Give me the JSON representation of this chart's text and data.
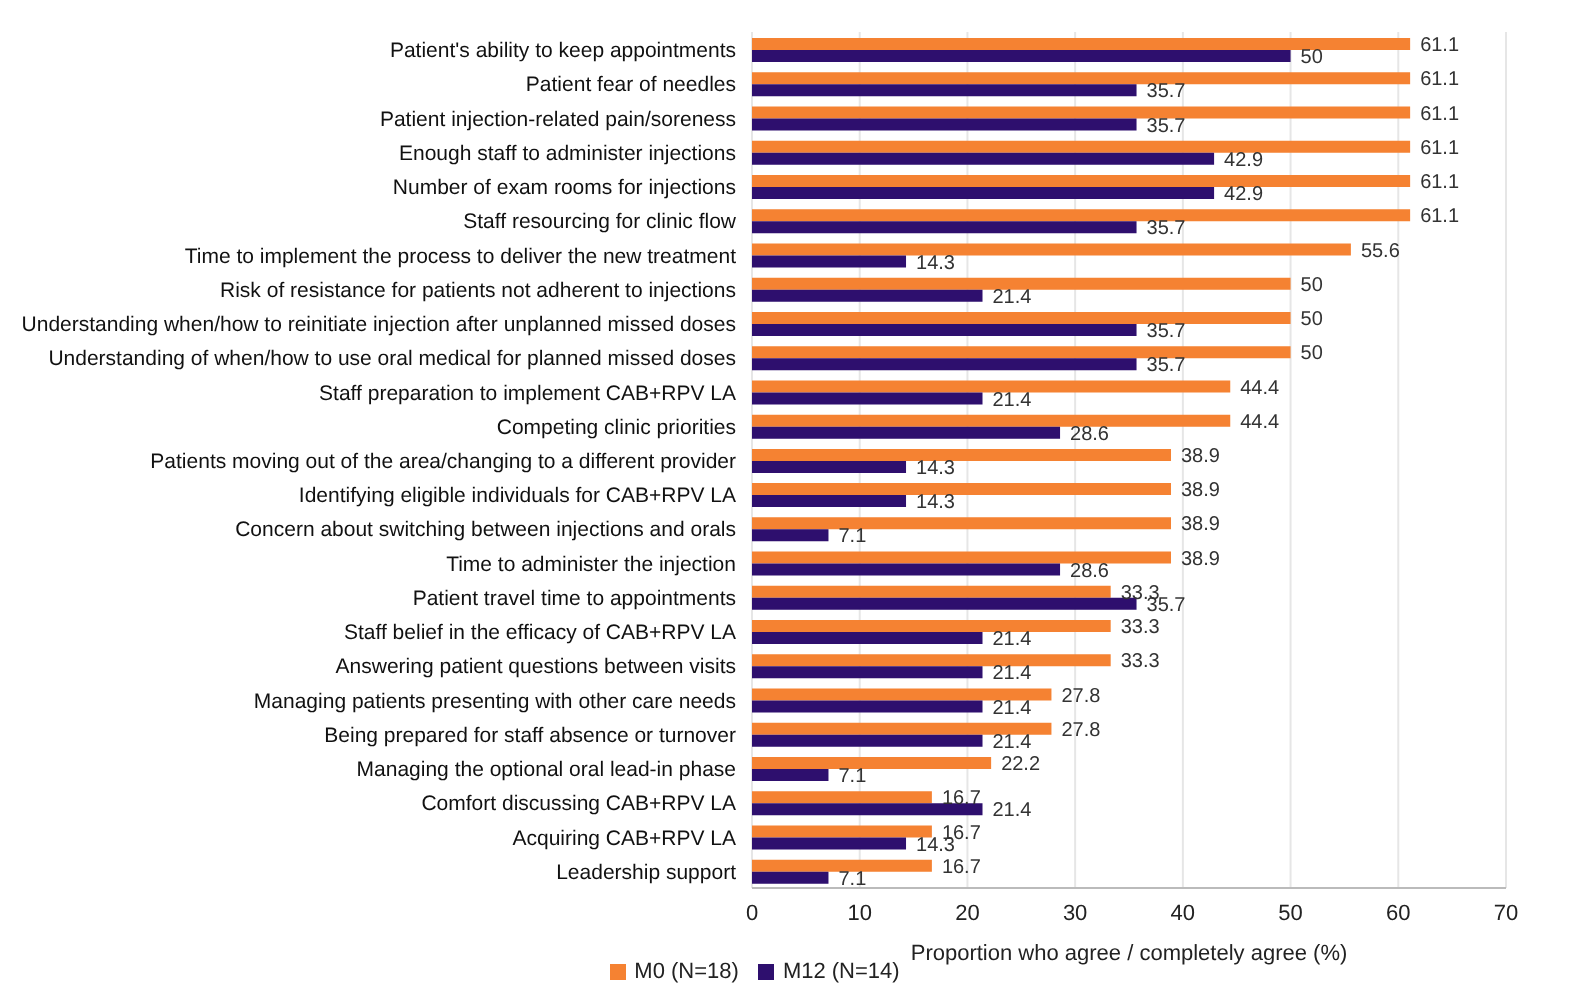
{
  "chart_data": {
    "type": "bar",
    "orientation": "horizontal",
    "xlabel": "Proportion who agree / completely agree (%)",
    "categories": [
      "Patient's ability to keep appointments",
      "Patient fear of needles",
      "Patient injection-related pain/soreness",
      "Enough staff to administer injections",
      "Number of exam rooms for injections",
      "Staff resourcing for clinic flow",
      "Time to implement the process to deliver the new treatment",
      "Risk of resistance for patients not adherent to injections",
      "Understanding when/how to reinitiate injection after unplanned missed doses",
      "Understanding of when/how to use oral medical for planned missed doses",
      "Staff preparation to implement CAB+RPV LA",
      "Competing clinic priorities",
      "Patients moving out of the area/changing to a different provider",
      "Identifying eligible individuals for CAB+RPV LA",
      "Concern about switching between injections and orals",
      "Time to administer the injection",
      "Patient travel time to appointments",
      "Staff belief in the efficacy of CAB+RPV LA",
      "Answering patient questions between visits",
      "Managing patients presenting with other care needs",
      "Being prepared for staff absence or turnover",
      "Managing the optional oral lead-in phase",
      "Comfort discussing CAB+RPV LA",
      "Acquiring CAB+RPV LA",
      "Leadership support"
    ],
    "series": [
      {
        "name": "M0 (N=18)",
        "color": "#f58232",
        "values": [
          61.1,
          61.1,
          61.1,
          61.1,
          61.1,
          61.1,
          55.6,
          50,
          50,
          50,
          44.4,
          44.4,
          38.9,
          38.9,
          38.9,
          38.9,
          33.3,
          33.3,
          33.3,
          27.8,
          27.8,
          22.2,
          16.7,
          16.7,
          16.7
        ]
      },
      {
        "name": "M12 (N=14)",
        "color": "#2e0f6e",
        "values": [
          50,
          35.7,
          35.7,
          42.9,
          42.9,
          35.7,
          14.3,
          21.4,
          35.7,
          35.7,
          21.4,
          28.6,
          14.3,
          14.3,
          7.1,
          28.6,
          35.7,
          21.4,
          21.4,
          21.4,
          21.4,
          7.1,
          21.4,
          14.3,
          7.1
        ]
      }
    ],
    "xlim": [
      0,
      70
    ],
    "xticks": [
      0,
      10,
      20,
      30,
      40,
      50,
      60,
      70
    ],
    "grid": "x",
    "legend": "bottom",
    "data_labels": true
  }
}
